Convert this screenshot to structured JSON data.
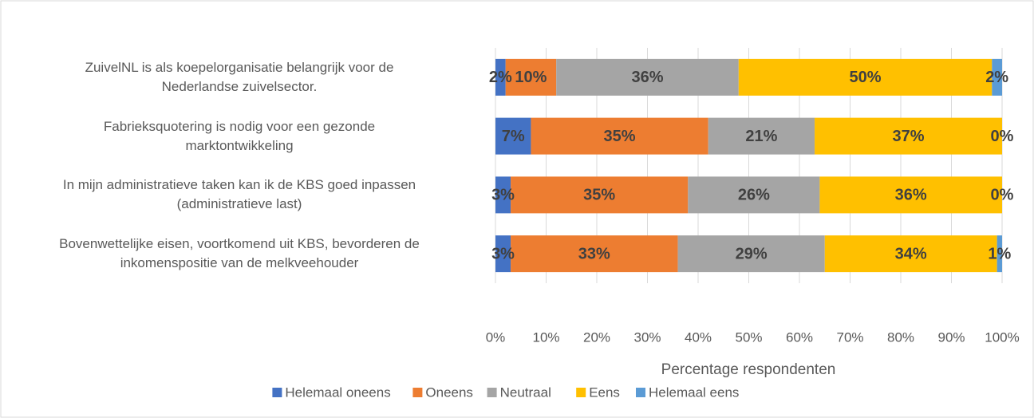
{
  "chart_data": {
    "type": "stacked-barh",
    "categories": [
      "ZuivelNL is als koepelorganisatie belangrijk voor de\nNederlandse zuivelsector.",
      "Fabrieksquotering is nodig voor een gezonde\nmarktontwikkeling",
      "In mijn administratieve taken kan ik de KBS goed inpassen\n(administratieve last)",
      "Bovenwettelijke eisen, voortkomend uit KBS, bevorderen de\ninkomenspositie van de melkveehouder"
    ],
    "series": [
      {
        "name": "Helemaal oneens",
        "color": "#4472c4",
        "values": [
          2,
          7,
          3,
          3
        ],
        "value_labels": [
          "2%",
          "7%",
          "3%",
          "3%"
        ]
      },
      {
        "name": "Oneens",
        "color": "#ed7d31",
        "values": [
          10,
          35,
          35,
          33
        ],
        "value_labels": [
          "10%",
          "35%",
          "35%",
          "33%"
        ]
      },
      {
        "name": "Neutraal",
        "color": "#a5a5a5",
        "values": [
          36,
          21,
          26,
          29
        ],
        "value_labels": [
          "36%",
          "21%",
          "26%",
          "29%"
        ]
      },
      {
        "name": "Eens",
        "color": "#ffc000",
        "values": [
          50,
          37,
          36,
          34
        ],
        "value_labels": [
          "50%",
          "37%",
          "36%",
          "34%"
        ]
      },
      {
        "name": "Helemaal eens",
        "color": "#5b9bd5",
        "values": [
          2,
          0,
          0,
          1
        ],
        "value_labels": [
          "2%",
          "0%",
          "0%",
          "1%"
        ]
      }
    ],
    "xlabel": "Percentage respondenten",
    "xlim": [
      0,
      100
    ],
    "xticks": [
      {
        "value": 0,
        "label": "0%"
      },
      {
        "value": 10,
        "label": "10%"
      },
      {
        "value": 20,
        "label": "20%"
      },
      {
        "value": 30,
        "label": "30%"
      },
      {
        "value": 40,
        "label": "40%"
      },
      {
        "value": 50,
        "label": "50%"
      },
      {
        "value": 60,
        "label": "60%"
      },
      {
        "value": 70,
        "label": "70%"
      },
      {
        "value": 80,
        "label": "80%"
      },
      {
        "value": 90,
        "label": "90%"
      },
      {
        "value": 100,
        "label": "100%"
      }
    ],
    "grid": true,
    "legend": "bottom"
  }
}
